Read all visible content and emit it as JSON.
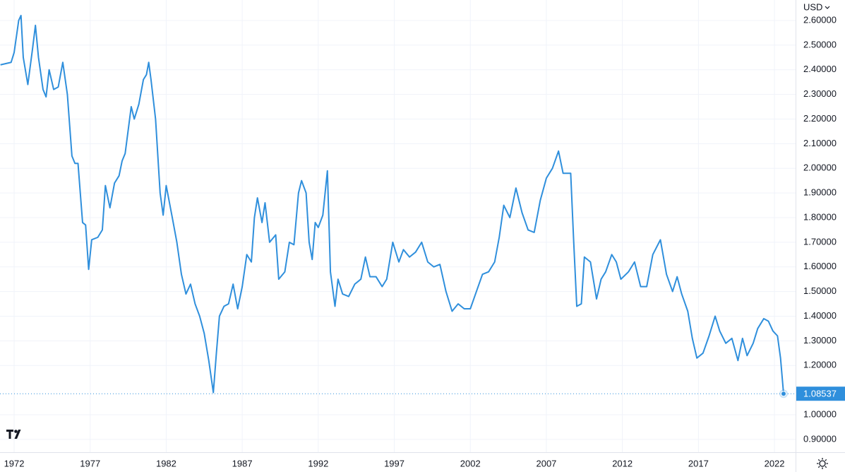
{
  "chart_data": {
    "type": "line",
    "currency": "USD",
    "x": [
      1971.1,
      1971.8,
      1972.0,
      1972.3,
      1972.45,
      1972.6,
      1972.9,
      1973.2,
      1973.4,
      1973.6,
      1973.9,
      1974.1,
      1974.3,
      1974.6,
      1974.9,
      1975.2,
      1975.5,
      1975.8,
      1976.0,
      1976.2,
      1976.5,
      1976.7,
      1976.9,
      1977.1,
      1977.5,
      1977.8,
      1978.0,
      1978.3,
      1978.6,
      1978.9,
      1979.1,
      1979.3,
      1979.7,
      1979.9,
      1980.2,
      1980.5,
      1980.7,
      1980.85,
      1981.0,
      1981.3,
      1981.6,
      1981.8,
      1982.0,
      1982.4,
      1982.7,
      1983.0,
      1983.3,
      1983.6,
      1983.9,
      1984.2,
      1984.5,
      1984.8,
      1985.1,
      1985.3,
      1985.5,
      1985.8,
      1986.1,
      1986.4,
      1986.7,
      1987.0,
      1987.3,
      1987.6,
      1987.8,
      1988.0,
      1988.3,
      1988.5,
      1988.8,
      1989.2,
      1989.4,
      1989.8,
      1990.1,
      1990.4,
      1990.7,
      1990.9,
      1991.2,
      1991.4,
      1991.6,
      1991.8,
      1992.0,
      1992.3,
      1992.6,
      1992.8,
      1993.1,
      1993.3,
      1993.6,
      1994.0,
      1994.4,
      1994.8,
      1995.1,
      1995.4,
      1995.8,
      1996.2,
      1996.5,
      1996.9,
      1997.3,
      1997.6,
      1998.0,
      1998.4,
      1998.8,
      1999.2,
      1999.6,
      2000.0,
      2000.4,
      2000.8,
      2001.2,
      2001.6,
      2002.0,
      2002.4,
      2002.8,
      2003.2,
      2003.6,
      2003.9,
      2004.2,
      2004.6,
      2005.0,
      2005.4,
      2005.8,
      2006.2,
      2006.6,
      2007.0,
      2007.4,
      2007.8,
      2008.1,
      2008.6,
      2008.8,
      2009.0,
      2009.3,
      2009.5,
      2009.9,
      2010.3,
      2010.6,
      2010.9,
      2011.3,
      2011.6,
      2011.9,
      2012.4,
      2012.8,
      2013.2,
      2013.6,
      2014.0,
      2014.5,
      2014.9,
      2015.3,
      2015.6,
      2015.9,
      2016.3,
      2016.6,
      2016.9,
      2017.3,
      2017.7,
      2018.1,
      2018.4,
      2018.8,
      2019.2,
      2019.6,
      2019.9,
      2020.2,
      2020.6,
      2020.9,
      2021.3,
      2021.6,
      2021.9,
      2022.2,
      2022.4,
      2022.6
    ],
    "series": [
      {
        "color": "#2f8fdc",
        "values": [
          2.42,
          2.43,
          2.47,
          2.6,
          2.62,
          2.45,
          2.34,
          2.48,
          2.58,
          2.45,
          2.32,
          2.29,
          2.4,
          2.32,
          2.33,
          2.43,
          2.3,
          2.05,
          2.02,
          2.02,
          1.78,
          1.77,
          1.59,
          1.71,
          1.72,
          1.75,
          1.93,
          1.84,
          1.94,
          1.97,
          2.03,
          2.06,
          2.25,
          2.2,
          2.26,
          2.36,
          2.38,
          2.43,
          2.36,
          2.2,
          1.9,
          1.81,
          1.93,
          1.8,
          1.7,
          1.57,
          1.49,
          1.53,
          1.45,
          1.4,
          1.33,
          1.22,
          1.09,
          1.25,
          1.4,
          1.44,
          1.45,
          1.53,
          1.43,
          1.52,
          1.65,
          1.62,
          1.8,
          1.88,
          1.78,
          1.86,
          1.7,
          1.73,
          1.55,
          1.58,
          1.7,
          1.69,
          1.9,
          1.95,
          1.9,
          1.7,
          1.63,
          1.78,
          1.76,
          1.81,
          1.99,
          1.58,
          1.44,
          1.55,
          1.49,
          1.48,
          1.53,
          1.55,
          1.64,
          1.56,
          1.56,
          1.52,
          1.55,
          1.7,
          1.62,
          1.67,
          1.64,
          1.66,
          1.7,
          1.62,
          1.6,
          1.61,
          1.5,
          1.42,
          1.45,
          1.43,
          1.43,
          1.5,
          1.57,
          1.58,
          1.62,
          1.72,
          1.85,
          1.8,
          1.92,
          1.82,
          1.75,
          1.74,
          1.87,
          1.96,
          2.0,
          2.07,
          1.98,
          1.98,
          1.7,
          1.44,
          1.45,
          1.64,
          1.62,
          1.47,
          1.55,
          1.58,
          1.65,
          1.62,
          1.55,
          1.58,
          1.62,
          1.52,
          1.52,
          1.65,
          1.71,
          1.57,
          1.5,
          1.56,
          1.49,
          1.42,
          1.31,
          1.23,
          1.25,
          1.32,
          1.4,
          1.34,
          1.29,
          1.31,
          1.22,
          1.31,
          1.24,
          1.29,
          1.35,
          1.39,
          1.38,
          1.34,
          1.32,
          1.23,
          1.08537
        ]
      }
    ],
    "last_price": 1.08537,
    "xlim": [
      1971.07,
      2023.39
    ],
    "xticks": [
      1972,
      1977,
      1982,
      1987,
      1992,
      1997,
      2002,
      2007,
      2012,
      2017,
      2022
    ],
    "ylim": [
      0.848,
      2.683
    ],
    "yticks": [
      {
        "value": 0.9,
        "label": "0.90000"
      },
      {
        "value": 1.0,
        "label": "1.00000"
      },
      {
        "value": 1.2,
        "label": "1.20000"
      },
      {
        "value": 1.3,
        "label": "1.30000"
      },
      {
        "value": 1.4,
        "label": "1.40000"
      },
      {
        "value": 1.5,
        "label": "1.50000"
      },
      {
        "value": 1.6,
        "label": "1.60000"
      },
      {
        "value": 1.7,
        "label": "1.70000"
      },
      {
        "value": 1.8,
        "label": "1.80000"
      },
      {
        "value": 1.9,
        "label": "1.90000"
      },
      {
        "value": 2.0,
        "label": "2.00000"
      },
      {
        "value": 2.1,
        "label": "2.10000"
      },
      {
        "value": 2.2,
        "label": "2.20000"
      },
      {
        "value": 2.3,
        "label": "2.30000"
      },
      {
        "value": 2.4,
        "label": "2.40000"
      },
      {
        "value": 2.5,
        "label": "2.50000"
      },
      {
        "value": 2.6,
        "label": "2.60000"
      }
    ],
    "grid": true
  }
}
